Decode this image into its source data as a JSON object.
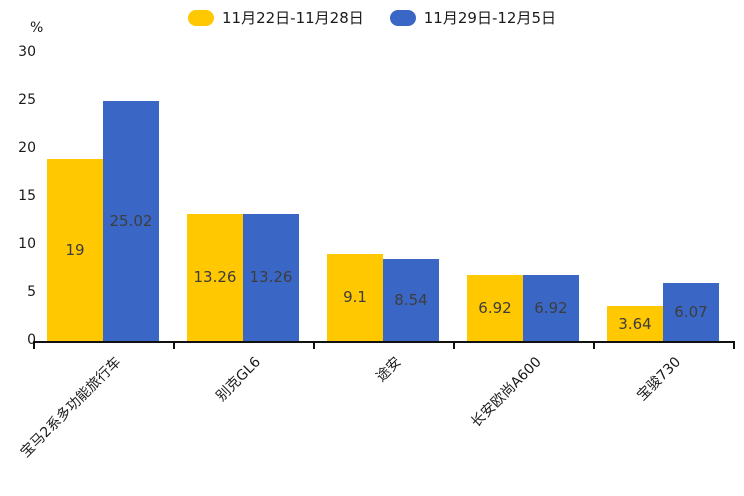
{
  "chart_data": {
    "type": "bar",
    "title": "",
    "ylabel": "%",
    "ylim": [
      0,
      30
    ],
    "yticks": [
      0,
      5,
      10,
      15,
      20,
      25,
      30
    ],
    "grid": false,
    "legend_position": "top",
    "categories": [
      "宝马2系多功能旅行车",
      "别克GL6",
      "途安",
      "长安欧尚A600",
      "宝骏730"
    ],
    "series": [
      {
        "name": "11月22日-11月28日",
        "color": "#FFC800",
        "values": [
          19,
          13.26,
          9.1,
          6.92,
          3.64
        ]
      },
      {
        "name": "11月29日-12月5日",
        "color": "#3A67C6",
        "values": [
          25.02,
          13.26,
          8.54,
          6.92,
          6.07
        ]
      }
    ],
    "value_labels": [
      [
        "19",
        "13.26",
        "9.1",
        "6.92",
        "3.64"
      ],
      [
        "25.02",
        "13.26",
        "8.54",
        "6.92",
        "6.07"
      ]
    ]
  }
}
